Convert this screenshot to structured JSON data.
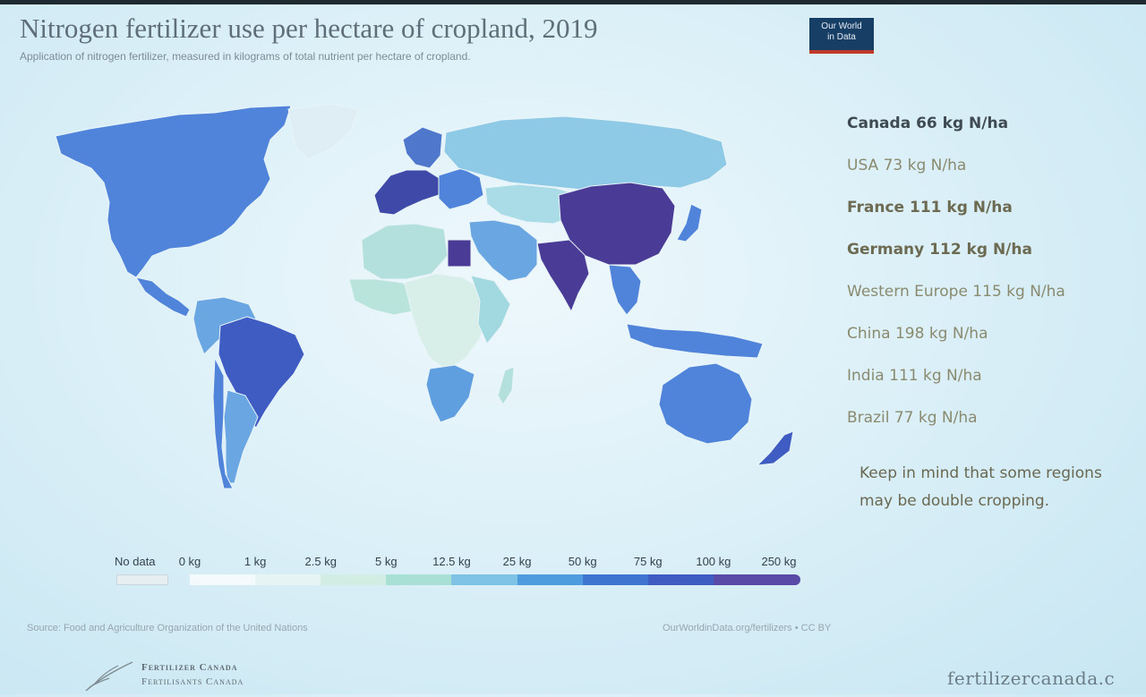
{
  "header": {
    "title": "Nitrogen fertilizer use per hectare of cropland, 2019",
    "subtitle": "Application of nitrogen fertilizer, measured in kilograms of total nutrient per hectare of cropland.",
    "logo_line1": "Our World",
    "logo_line2": "in Data"
  },
  "facts": {
    "canada": "Canada 66 kg N/ha",
    "usa": "USA 73 kg N/ha",
    "france": "France 111 kg N/ha",
    "germany": "Germany 112 kg N/ha",
    "western_europe": "Western Europe 115 kg N/ha",
    "china": "China 198 kg N/ha",
    "india": "India 111 kg N/ha",
    "brazil": "Brazil 77 kg N/ha",
    "note": "Keep in mind that some regions may be double cropping."
  },
  "legend": {
    "no_data": "No data",
    "labels": [
      "0 kg",
      "1 kg",
      "2.5 kg",
      "5 kg",
      "12.5 kg",
      "25 kg",
      "50 kg",
      "75 kg",
      "100 kg",
      "250 kg"
    ],
    "colors": [
      "#f4f9fb",
      "#e6f4f3",
      "#d2ede4",
      "#a9e0d6",
      "#7ec3e6",
      "#4f9be0",
      "#3d75d0",
      "#3f5cc2",
      "#5a4aa8"
    ],
    "no_data_color": "#e6eef1"
  },
  "footer": {
    "source": "Source: Food and Agriculture Organization of the United Nations",
    "license": "OurWorldinData.org/fertilizers • CC BY",
    "org_line1": "Fertilizer Canada",
    "org_line2": "Fertilisants Canada",
    "org_url": "fertilizercanada.c"
  },
  "map_data": {
    "values_kg_per_ha": {
      "Canada": 66,
      "USA": 73,
      "France": 111,
      "Germany": 112,
      "Western Europe": 115,
      "China": 198,
      "India": 111,
      "Brazil": 77
    },
    "region_colors": {
      "north_america": "#4f84da",
      "greenland": "#dfeef4",
      "central_america": "#4f84da",
      "south_america_north": "#6aa7e2",
      "brazil": "#3f5cc2",
      "argentina": "#6aa7e2",
      "chile": "#4f84da",
      "europe_west": "#3f4aa8",
      "europe_north": "#4f78cc",
      "europe_east": "#4f84da",
      "russia": "#8ec9e6",
      "north_africa": "#b3e0dc",
      "egypt": "#4a3c96",
      "west_africa": "#b9e4dc",
      "central_africa": "#d7efe8",
      "east_africa": "#a2d8e0",
      "south_africa": "#5f9fe0",
      "madagascar": "#b3e0dc",
      "middle_east": "#6aa7e2",
      "central_asia": "#a9dce6",
      "china": "#4a3c96",
      "india": "#4a3c96",
      "southeast_asia": "#4f84da",
      "japan": "#4f84da",
      "indonesia": "#4f84da",
      "australia": "#4f84da",
      "new_zealand": "#3f5cc2"
    }
  }
}
